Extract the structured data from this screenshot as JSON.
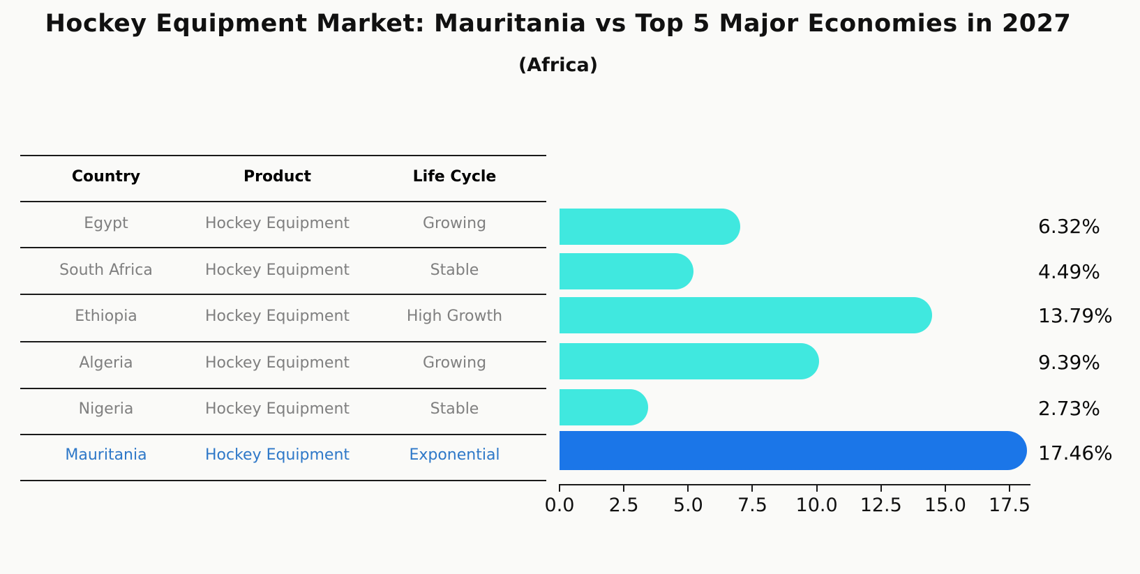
{
  "title": "Hockey Equipment Market: Mauritania vs Top 5 Major Economies in 2027",
  "subtitle": "(Africa)",
  "table": {
    "headers": [
      "Country",
      "Product",
      "Life Cycle"
    ],
    "rows": [
      {
        "country": "Egypt",
        "product": "Hockey Equipment",
        "life_cycle": "Growing"
      },
      {
        "country": "South Africa",
        "product": "Hockey Equipment",
        "life_cycle": "Stable"
      },
      {
        "country": "Ethiopia",
        "product": "Hockey Equipment",
        "life_cycle": "High Growth"
      },
      {
        "country": "Algeria",
        "product": "Hockey Equipment",
        "life_cycle": "Growing"
      },
      {
        "country": "Nigeria",
        "product": "Hockey Equipment",
        "life_cycle": "Stable"
      },
      {
        "country": "Mauritania",
        "product": "Hockey Equipment",
        "life_cycle": "Exponential"
      }
    ],
    "highlight_row_index": 5
  },
  "chart_data": {
    "type": "bar",
    "orientation": "horizontal",
    "categories": [
      "Egypt",
      "South Africa",
      "Ethiopia",
      "Algeria",
      "Nigeria",
      "Mauritania"
    ],
    "values": [
      6.32,
      4.49,
      13.79,
      9.39,
      2.73,
      17.46
    ],
    "value_labels": [
      "6.32%",
      "4.49%",
      "13.79%",
      "9.39%",
      "2.73%",
      "17.46%"
    ],
    "x_ticks": [
      "0.0",
      "2.5",
      "5.0",
      "7.5",
      "10.0",
      "12.5",
      "15.0",
      "17.5"
    ],
    "x_tick_values": [
      0,
      2.5,
      5,
      7.5,
      10,
      12.5,
      15,
      17.5
    ],
    "xlim": [
      0,
      18.3
    ],
    "grid": false,
    "legend": "none",
    "title": "Hockey Equipment Market: Mauritania vs Top 5 Major Economies in 2027 (Africa)",
    "xlabel": "",
    "ylabel": "",
    "bar_color": "#40e8df",
    "highlight_bar_color": "#1b76e8",
    "highlight_index": 5,
    "highlight_border_style": "dotted"
  },
  "colors": {
    "background": "#fafaf8",
    "title_text": "#111111",
    "table_header_text": "#000000",
    "table_body_text": "#7f7f7f",
    "highlight_row_text": "#2e78c8",
    "axis": "#1a1a1a",
    "value_label_text": "#0a0a0a"
  }
}
